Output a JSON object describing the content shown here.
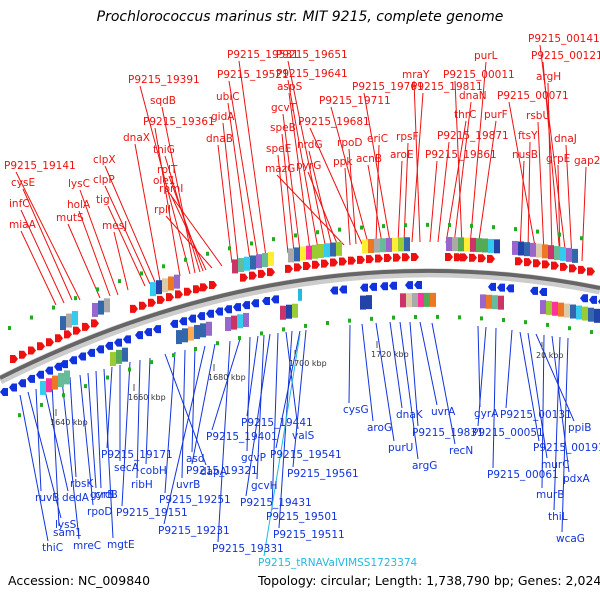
{
  "title": "Prochlorococcus marinus str. MIT 9215, complete genome",
  "footer": {
    "accession": "Accession: NC_009840",
    "topology": "Topology: circular; Length: 1,738,790 bp; Genes: 2,024"
  },
  "colors": {
    "forward": "#ee1111",
    "reverse": "#1133dd",
    "rna": "#22bbdd",
    "backbone": "#666666",
    "feature_tick": "#22aa22"
  },
  "scale_labels": [
    "1640 kbp",
    "1660 kbp",
    "1680 kbp",
    "1700 kbp",
    "1720 kbp",
    "20 kbp"
  ],
  "forward_labels": [
    "miaA",
    "infC",
    "cysE",
    "P9215_19141",
    "mutS",
    "holA",
    "lysC",
    "mesJ",
    "tig",
    "clpP",
    "clpX",
    "dnaX",
    "P9215_19361",
    "P9215_19391",
    "sqdB",
    "thiG",
    "rplT",
    "rpmI",
    "rplI",
    "ole1",
    "dnaB",
    "gidA",
    "ubiC",
    "P9215_19521",
    "P9215_19531",
    "speE",
    "speB",
    "gcvT",
    "aspS",
    "P9215_19641",
    "P9215_19651",
    "nrdG",
    "pyrG",
    "mazG",
    "ppk",
    "rpoD",
    "P9215_19681",
    "P9215_19711",
    "eriC",
    "acnB",
    "P9215_19761",
    "aroE",
    "rpsF",
    "P9215_19811",
    "mraY",
    "P9215_19861",
    "P9215_19871",
    "thrC",
    "dnaN",
    "P9215_00011",
    "purL",
    "purF",
    "nusB",
    "ftsY",
    "P9215_00071",
    "rsbU",
    "argH",
    "P9215_00121",
    "P9215_00141",
    "grpE",
    "dnaJ",
    "gap2"
  ],
  "reverse_labels": [
    "thiC",
    "lysS",
    "ruvB",
    "dedA",
    "sam1",
    "mreC",
    "rbsK",
    "rpoD",
    "gyrB",
    "crcB",
    "mgtE",
    "P9215_19171",
    "secA",
    "P9215_19151",
    "ribH",
    "cobH",
    "dapA",
    "P9215_19251",
    "uvrB",
    "asd",
    "P9215_19231",
    "P9215_19321",
    "P9215_19331",
    "P9215_19401",
    "gcvP",
    "P9215_19441",
    "gcvH",
    "P9215_19431",
    "P9215_19501",
    "valS",
    "P9215_19511",
    "P9215_19541",
    "P9215_19561",
    "P9215_tRNAValVIMSS1723374",
    "cysG",
    "aroG",
    "purU",
    "dnaK",
    "argG",
    "P9215_19831",
    "uvrA",
    "recN",
    "gyrA",
    "P9215_00051",
    "P9215_00061",
    "P9215_00131",
    "P9215_00191",
    "murC",
    "ppiB",
    "murB",
    "pdxA",
    "thiL",
    "wcaG"
  ]
}
